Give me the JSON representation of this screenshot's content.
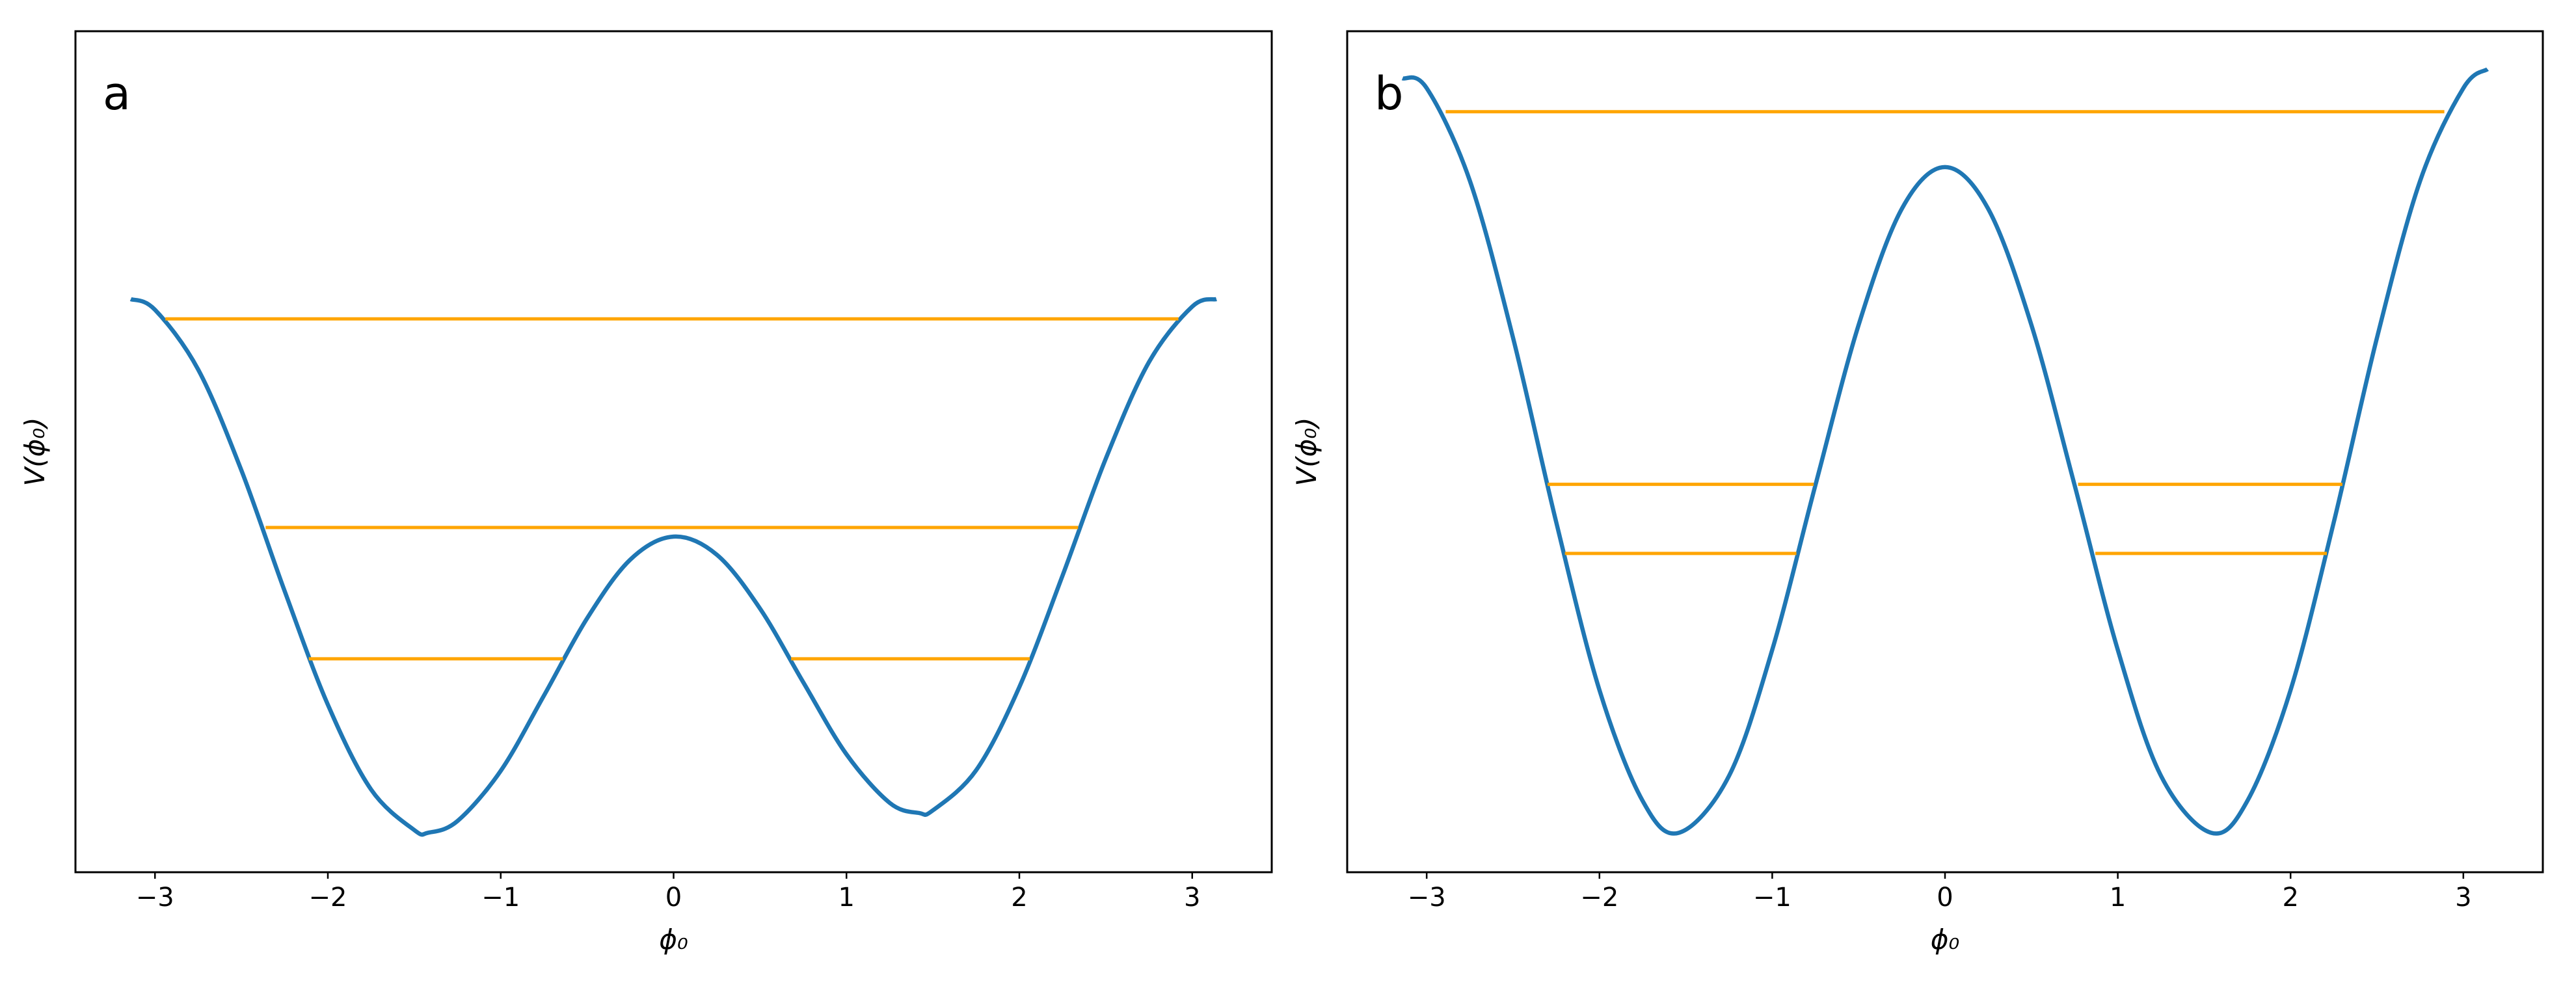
{
  "chart_data": [
    {
      "type": "line",
      "panel_label": "a",
      "x_label": "ϕ₀",
      "y_label": "V(ϕ₀)",
      "xlim": [
        -3.46,
        3.46
      ],
      "ylim": [
        -0.074,
        1.502
      ],
      "xticks": [
        {
          "value": -3,
          "label": "−3"
        },
        {
          "value": -2,
          "label": "−2"
        },
        {
          "value": -1,
          "label": "−1"
        },
        0,
        1,
        2,
        3
      ],
      "series": [
        {
          "color": "#1f77b4",
          "x": [
            -3.14,
            -3,
            -2.75,
            -2.5,
            -2.25,
            -2,
            -1.75,
            -1.5,
            -1.42,
            -1.25,
            -1,
            -0.75,
            -0.5,
            -0.25,
            0,
            0.25,
            0.5,
            0.75,
            1,
            1.25,
            1.42,
            1.5,
            1.75,
            2,
            2.25,
            2.5,
            2.75,
            3,
            3.14
          ],
          "values": [
            1.0,
            0.98,
            0.868,
            0.679,
            0.453,
            0.24,
            0.081,
            0.005,
            0.0,
            0.022,
            0.116,
            0.257,
            0.402,
            0.512,
            0.555,
            0.521,
            0.42,
            0.282,
            0.147,
            0.056,
            0.037,
            0.042,
            0.117,
            0.273,
            0.482,
            0.701,
            0.882,
            0.986,
            1.0
          ]
        },
        {
          "color": "#ffa500",
          "x": [
            -2.94,
            2.92
          ],
          "values": [
            0.963,
            0.963
          ]
        },
        {
          "color": "#ffa500",
          "x": [
            -2.36,
            2.34
          ],
          "values": [
            0.572,
            0.572
          ]
        },
        {
          "color": "#ffa500",
          "x": [
            -2.11,
            -0.64
          ],
          "values": [
            0.326,
            0.326
          ]
        },
        {
          "color": "#ffa500",
          "x": [
            0.68,
            2.06
          ],
          "values": [
            0.326,
            0.326
          ]
        }
      ]
    },
    {
      "type": "line",
      "panel_label": "b",
      "x_label": "ϕ₀",
      "y_label": "V(ϕ₀)",
      "xlim": [
        -3.46,
        3.46
      ],
      "ylim": [
        -0.052,
        1.056
      ],
      "xticks": [
        {
          "value": -3,
          "label": "−3"
        },
        {
          "value": -2,
          "label": "−2"
        },
        {
          "value": -1,
          "label": "−1"
        },
        0,
        1,
        2,
        3
      ],
      "series": [
        {
          "color": "#1f77b4",
          "x": [
            -3.14,
            -3,
            -2.75,
            -2.5,
            -2.25,
            -2,
            -1.75,
            -1.54,
            -1.25,
            -1,
            -0.75,
            -0.5,
            -0.25,
            0,
            0.25,
            0.5,
            0.75,
            1,
            1.25,
            1.54,
            1.75,
            2,
            2.25,
            2.5,
            2.75,
            3,
            3.14
          ],
          "values": [
            0.994,
            0.981,
            0.859,
            0.652,
            0.409,
            0.188,
            0.042,
            0.0,
            0.075,
            0.241,
            0.458,
            0.669,
            0.822,
            0.877,
            0.822,
            0.669,
            0.458,
            0.241,
            0.075,
            0.0,
            0.042,
            0.188,
            0.409,
            0.652,
            0.859,
            0.981,
            1.006
          ]
        },
        {
          "color": "#ffa500",
          "x": [
            -2.89,
            2.89
          ],
          "values": [
            0.95,
            0.95
          ]
        },
        {
          "color": "#ffa500",
          "x": [
            -2.3,
            -0.76
          ],
          "values": [
            0.459,
            0.459
          ]
        },
        {
          "color": "#ffa500",
          "x": [
            0.77,
            2.3
          ],
          "values": [
            0.459,
            0.459
          ]
        },
        {
          "color": "#ffa500",
          "x": [
            -2.2,
            -0.86
          ],
          "values": [
            0.368,
            0.368
          ]
        },
        {
          "color": "#ffa500",
          "x": [
            0.87,
            2.21
          ],
          "values": [
            0.368,
            0.368
          ]
        }
      ]
    }
  ]
}
